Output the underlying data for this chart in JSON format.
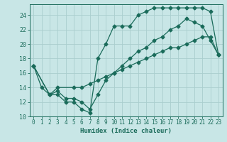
{
  "xlabel": "Humidex (Indice chaleur)",
  "background_color": "#c8e6e6",
  "grid_color": "#aacece",
  "line_color": "#1a6b5a",
  "xlim": [
    -0.5,
    23.5
  ],
  "ylim": [
    10,
    25.5
  ],
  "yticks": [
    10,
    12,
    14,
    16,
    18,
    20,
    22,
    24
  ],
  "xticks": [
    0,
    1,
    2,
    3,
    4,
    5,
    6,
    7,
    8,
    9,
    10,
    11,
    12,
    13,
    14,
    15,
    16,
    17,
    18,
    19,
    20,
    21,
    22,
    23
  ],
  "line1_x": [
    0,
    2,
    3,
    4,
    5,
    6,
    7,
    8,
    9,
    10,
    11,
    12,
    13,
    14,
    15,
    16,
    17,
    18,
    19,
    20,
    21,
    22,
    23
  ],
  "line1_y": [
    17,
    13,
    13,
    12,
    12,
    11,
    10.5,
    18,
    20,
    22.5,
    22.5,
    22.5,
    24,
    24.5,
    25,
    25,
    25,
    25,
    25,
    25,
    25,
    24.5,
    18.5
  ],
  "line2_x": [
    0,
    1,
    2,
    3,
    4,
    5,
    6,
    7,
    8,
    9,
    10,
    11,
    12,
    13,
    14,
    15,
    16,
    17,
    18,
    19,
    20,
    21,
    22,
    23
  ],
  "line2_y": [
    17,
    14,
    13,
    13.5,
    12.5,
    12.5,
    12,
    11,
    13,
    15,
    16,
    17,
    18,
    19,
    19.5,
    20.5,
    21,
    22,
    22.5,
    23.5,
    23,
    22.5,
    20.5,
    18.5
  ],
  "line3_x": [
    0,
    2,
    3,
    5,
    6,
    7,
    8,
    9,
    10,
    11,
    12,
    13,
    14,
    15,
    16,
    17,
    18,
    19,
    20,
    21,
    22,
    23
  ],
  "line3_y": [
    17,
    13,
    14,
    14,
    14,
    14.5,
    15,
    15.5,
    16,
    16.5,
    17,
    17.5,
    18,
    18.5,
    19,
    19.5,
    19.5,
    20,
    20.5,
    21,
    21,
    18.5
  ]
}
